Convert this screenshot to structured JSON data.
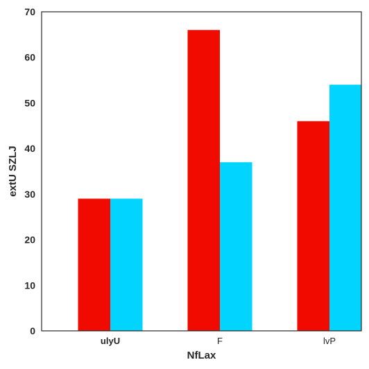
{
  "chart_data": {
    "type": "bar",
    "title": "",
    "xlabel": "NfLax",
    "ylabel": "extU SZLJ",
    "categories": [
      "ulyU",
      "F",
      "lvP"
    ],
    "category_label_weights": [
      "bold",
      "normal",
      "normal"
    ],
    "series": [
      {
        "values": [
          29,
          66,
          46
        ],
        "color": "#f00a00"
      },
      {
        "values": [
          29,
          37,
          54
        ],
        "color": "#00d4ff"
      }
    ],
    "ylim": [
      0,
      70
    ],
    "yticks": [
      0,
      10,
      20,
      30,
      40,
      50,
      60,
      70
    ],
    "grid": false,
    "legend": "none"
  }
}
